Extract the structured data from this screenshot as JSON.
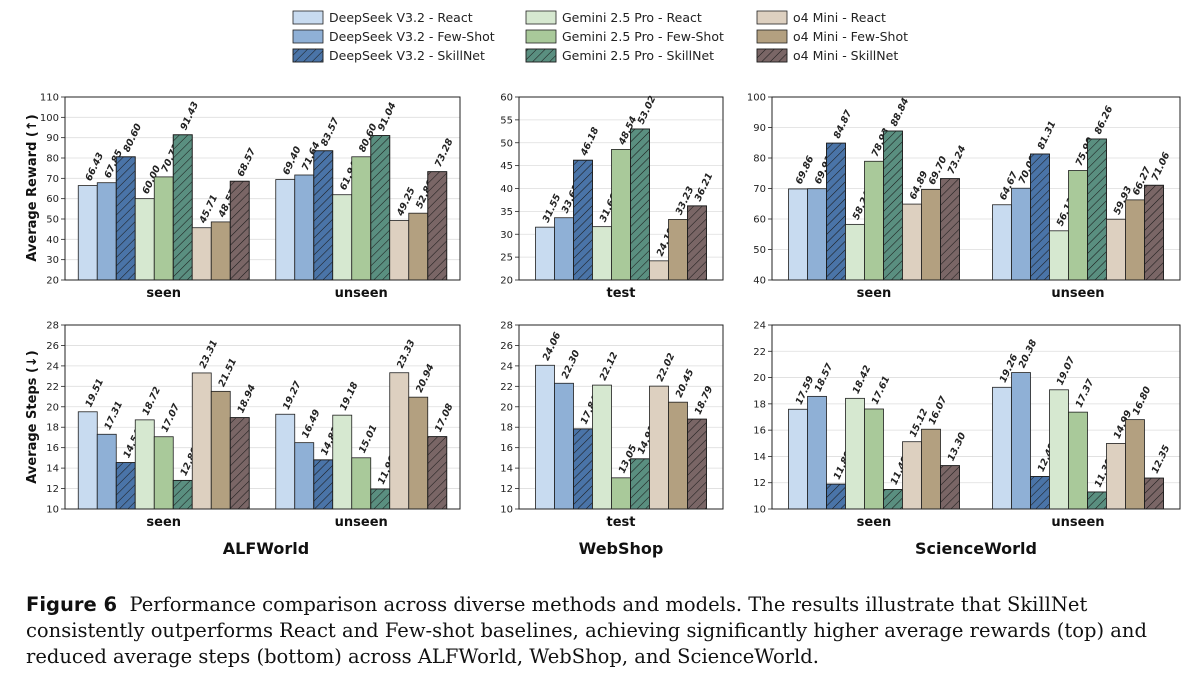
{
  "legend": [
    {
      "label": "DeepSeek V3.2 - React",
      "color": "#c8dbf0",
      "hatch": false
    },
    {
      "label": "DeepSeek V3.2 - Few-Shot",
      "color": "#8fb0d6",
      "hatch": false
    },
    {
      "label": "DeepSeek V3.2 - SkillNet",
      "color": "#4a74a8",
      "hatch": true
    },
    {
      "label": "Gemini 2.5 Pro - React",
      "color": "#d6e8d0",
      "hatch": false
    },
    {
      "label": "Gemini 2.5 Pro - Few-Shot",
      "color": "#a9c99a",
      "hatch": false
    },
    {
      "label": "Gemini 2.5 Pro - SkillNet",
      "color": "#5a8f80",
      "hatch": true
    },
    {
      "label": "o4 Mini - React",
      "color": "#ddd0c0",
      "hatch": false
    },
    {
      "label": "o4 Mini - Few-Shot",
      "color": "#b3a080",
      "hatch": false
    },
    {
      "label": "o4 Mini - SkillNet",
      "color": "#7a6666",
      "hatch": true
    }
  ],
  "row_ylabels": [
    "Average Reward (↑)",
    "Average Steps (↓)"
  ],
  "benchmarks": [
    "ALFWorld",
    "WebShop",
    "ScienceWorld"
  ],
  "chart_data": [
    {
      "type": "bar",
      "benchmark": "ALFWorld",
      "metric": "Average Reward",
      "categories": [
        "seen",
        "unseen"
      ],
      "ylim": [
        20,
        110
      ],
      "yticks": [
        20,
        30,
        40,
        50,
        60,
        70,
        80,
        90,
        100,
        110
      ],
      "ytick_labels": [
        "20",
        "30",
        "40",
        "50",
        "60",
        "70",
        "80",
        "90",
        "100",
        "110"
      ],
      "series": [
        {
          "name": "DeepSeek V3.2 - React",
          "values": [
            66.43,
            69.4
          ]
        },
        {
          "name": "DeepSeek V3.2 - Few-Shot",
          "values": [
            67.85,
            71.64
          ]
        },
        {
          "name": "DeepSeek V3.2 - SkillNet",
          "values": [
            80.6,
            83.57
          ]
        },
        {
          "name": "Gemini 2.5 Pro - React",
          "values": [
            60.0,
            61.94
          ]
        },
        {
          "name": "Gemini 2.5 Pro - Few-Shot",
          "values": [
            70.71,
            80.6
          ]
        },
        {
          "name": "Gemini 2.5 Pro - SkillNet",
          "values": [
            91.43,
            91.04
          ]
        },
        {
          "name": "o4 Mini - React",
          "values": [
            45.71,
            49.25
          ]
        },
        {
          "name": "o4 Mini - Few-Shot",
          "values": [
            48.57,
            52.86
          ]
        },
        {
          "name": "o4 Mini - SkillNet",
          "values": [
            68.57,
            73.28
          ]
        }
      ],
      "labels": [
        [
          "66.43",
          "69.40"
        ],
        [
          "67.85",
          "71.64"
        ],
        [
          "80.60",
          "83.57"
        ],
        [
          "60.00",
          "61.94"
        ],
        [
          "70.71",
          "80.60"
        ],
        [
          "91.43",
          "91.04"
        ],
        [
          "45.71",
          "49.25"
        ],
        [
          "48.57",
          "52.86"
        ],
        [
          "68.57",
          "73.28"
        ]
      ]
    },
    {
      "type": "bar",
      "benchmark": "WebShop",
      "metric": "Average Reward",
      "categories": [
        "test"
      ],
      "ylim": [
        20,
        60
      ],
      "yticks": [
        20,
        25,
        30,
        35,
        40,
        45,
        50,
        55,
        60
      ],
      "ytick_labels": [
        "20",
        "25",
        "30",
        "35",
        "40",
        "45",
        "50",
        "55",
        "60"
      ],
      "series": [
        {
          "name": "DeepSeek V3.2 - React",
          "values": [
            31.55
          ]
        },
        {
          "name": "DeepSeek V3.2 - Few-Shot",
          "values": [
            33.61
          ]
        },
        {
          "name": "DeepSeek V3.2 - SkillNet",
          "values": [
            46.18
          ]
        },
        {
          "name": "Gemini 2.5 Pro - React",
          "values": [
            31.66
          ]
        },
        {
          "name": "Gemini 2.5 Pro - Few-Shot",
          "values": [
            48.54
          ]
        },
        {
          "name": "Gemini 2.5 Pro - SkillNet",
          "values": [
            53.02
          ]
        },
        {
          "name": "o4 Mini - React",
          "values": [
            24.19
          ]
        },
        {
          "name": "o4 Mini - Few-Shot",
          "values": [
            33.23
          ]
        },
        {
          "name": "o4 Mini - SkillNet",
          "values": [
            36.21
          ]
        }
      ],
      "labels": [
        [
          "31.55"
        ],
        [
          "33.61"
        ],
        [
          "46.18"
        ],
        [
          "31.66"
        ],
        [
          "48.54"
        ],
        [
          "53.02"
        ],
        [
          "24.19"
        ],
        [
          "33.23"
        ],
        [
          "36.21"
        ]
      ]
    },
    {
      "type": "bar",
      "benchmark": "ScienceWorld",
      "metric": "Average Reward",
      "categories": [
        "seen",
        "unseen"
      ],
      "ylim": [
        40,
        100
      ],
      "yticks": [
        40,
        50,
        60,
        70,
        80,
        90,
        100
      ],
      "ytick_labels": [
        "40",
        "50",
        "60",
        "70",
        "80",
        "90",
        "100"
      ],
      "series": [
        {
          "name": "DeepSeek V3.2 - React",
          "values": [
            69.86,
            64.67
          ]
        },
        {
          "name": "DeepSeek V3.2 - Few-Shot",
          "values": [
            69.93,
            70.09
          ]
        },
        {
          "name": "DeepSeek V3.2 - SkillNet",
          "values": [
            84.87,
            81.31
          ]
        },
        {
          "name": "Gemini 2.5 Pro - React",
          "values": [
            58.24,
            56.13
          ]
        },
        {
          "name": "Gemini 2.5 Pro - Few-Shot",
          "values": [
            78.93,
            75.9
          ]
        },
        {
          "name": "Gemini 2.5 Pro - SkillNet",
          "values": [
            88.84,
            86.26
          ]
        },
        {
          "name": "o4 Mini - React",
          "values": [
            64.89,
            59.93
          ]
        },
        {
          "name": "o4 Mini - Few-Shot",
          "values": [
            69.7,
            66.27
          ]
        },
        {
          "name": "o4 Mini - SkillNet",
          "values": [
            73.24,
            71.06
          ]
        }
      ],
      "labels": [
        [
          "69.86",
          "64.67"
        ],
        [
          "69.93",
          "70.09"
        ],
        [
          "84.87",
          "81.31"
        ],
        [
          "58.24",
          "56.13"
        ],
        [
          "78.93",
          "75.90"
        ],
        [
          "88.84",
          "86.26"
        ],
        [
          "64.89",
          "59.93"
        ],
        [
          "69.70",
          "66.27"
        ],
        [
          "73.24",
          "71.06"
        ]
      ]
    },
    {
      "type": "bar",
      "benchmark": "ALFWorld",
      "metric": "Average Steps",
      "categories": [
        "seen",
        "unseen"
      ],
      "ylim": [
        10,
        28
      ],
      "yticks": [
        10,
        12,
        14,
        16,
        18,
        20,
        22,
        24,
        26,
        28
      ],
      "ytick_labels": [
        "10",
        "12",
        "14",
        "16",
        "18",
        "20",
        "22",
        "24",
        "26",
        "28"
      ],
      "series": [
        {
          "name": "DeepSeek V3.2 - React",
          "values": [
            19.51,
            19.27
          ]
        },
        {
          "name": "DeepSeek V3.2 - Few-Shot",
          "values": [
            17.31,
            16.49
          ]
        },
        {
          "name": "DeepSeek V3.2 - SkillNet",
          "values": [
            14.54,
            14.81
          ]
        },
        {
          "name": "Gemini 2.5 Pro - React",
          "values": [
            18.72,
            19.18
          ]
        },
        {
          "name": "Gemini 2.5 Pro - Few-Shot",
          "values": [
            17.07,
            15.01
          ]
        },
        {
          "name": "Gemini 2.5 Pro - SkillNet",
          "values": [
            12.8,
            11.96
          ]
        },
        {
          "name": "o4 Mini - React",
          "values": [
            23.31,
            23.33
          ]
        },
        {
          "name": "o4 Mini - Few-Shot",
          "values": [
            21.51,
            20.94
          ]
        },
        {
          "name": "o4 Mini - SkillNet",
          "values": [
            18.94,
            17.08
          ]
        }
      ],
      "labels": [
        [
          "19.51",
          "19.27"
        ],
        [
          "17.31",
          "16.49"
        ],
        [
          "14.54",
          "14.81"
        ],
        [
          "18.72",
          "19.18"
        ],
        [
          "17.07",
          "15.01"
        ],
        [
          "12.80",
          "11.96"
        ],
        [
          "23.31",
          "23.33"
        ],
        [
          "21.51",
          "20.94"
        ],
        [
          "18.94",
          "17.08"
        ]
      ]
    },
    {
      "type": "bar",
      "benchmark": "WebShop",
      "metric": "Average Steps",
      "categories": [
        "test"
      ],
      "ylim": [
        10,
        28
      ],
      "yticks": [
        10,
        12,
        14,
        16,
        18,
        20,
        22,
        24,
        26,
        28
      ],
      "ytick_labels": [
        "10",
        "12",
        "14",
        "16",
        "18",
        "20",
        "22",
        "24",
        "26",
        "28"
      ],
      "series": [
        {
          "name": "DeepSeek V3.2 - React",
          "values": [
            24.06
          ]
        },
        {
          "name": "DeepSeek V3.2 - Few-Shot",
          "values": [
            22.3
          ]
        },
        {
          "name": "DeepSeek V3.2 - SkillNet",
          "values": [
            17.84
          ]
        },
        {
          "name": "Gemini 2.5 Pro - React",
          "values": [
            22.12
          ]
        },
        {
          "name": "Gemini 2.5 Pro - Few-Shot",
          "values": [
            13.05
          ]
        },
        {
          "name": "Gemini 2.5 Pro - SkillNet",
          "values": [
            14.91
          ]
        },
        {
          "name": "o4 Mini - React",
          "values": [
            22.02
          ]
        },
        {
          "name": "o4 Mini - Few-Shot",
          "values": [
            20.45
          ]
        },
        {
          "name": "o4 Mini - SkillNet",
          "values": [
            18.79
          ]
        }
      ],
      "labels": [
        [
          "24.06"
        ],
        [
          "22.30"
        ],
        [
          "17.84"
        ],
        [
          "22.12"
        ],
        [
          "13.05"
        ],
        [
          "14.91"
        ],
        [
          "22.02"
        ],
        [
          "20.45"
        ],
        [
          "18.79"
        ]
      ]
    },
    {
      "type": "bar",
      "benchmark": "ScienceWorld",
      "metric": "Average Steps",
      "categories": [
        "seen",
        "unseen"
      ],
      "ylim": [
        10,
        24
      ],
      "yticks": [
        10,
        12,
        14,
        16,
        18,
        20,
        22,
        24
      ],
      "ytick_labels": [
        "10",
        "12",
        "14",
        "16",
        "18",
        "20",
        "22",
        "24"
      ],
      "series": [
        {
          "name": "DeepSeek V3.2 - React",
          "values": [
            17.59,
            19.26
          ]
        },
        {
          "name": "DeepSeek V3.2 - Few-Shot",
          "values": [
            18.57,
            20.38
          ]
        },
        {
          "name": "DeepSeek V3.2 - SkillNet",
          "values": [
            11.89,
            12.48
          ]
        },
        {
          "name": "Gemini 2.5 Pro - React",
          "values": [
            18.42,
            19.07
          ]
        },
        {
          "name": "Gemini 2.5 Pro - Few-Shot",
          "values": [
            17.61,
            17.37
          ]
        },
        {
          "name": "Gemini 2.5 Pro - SkillNet",
          "values": [
            11.49,
            11.3
          ]
        },
        {
          "name": "o4 Mini - React",
          "values": [
            15.12,
            14.99
          ]
        },
        {
          "name": "o4 Mini - Few-Shot",
          "values": [
            16.07,
            16.8
          ]
        },
        {
          "name": "o4 Mini - SkillNet",
          "values": [
            13.3,
            12.35
          ]
        }
      ],
      "labels": [
        [
          "17.59",
          "19.26"
        ],
        [
          "18.57",
          "20.38"
        ],
        [
          "11.89",
          "12.48"
        ],
        [
          "18.42",
          "19.07"
        ],
        [
          "17.61",
          "17.37"
        ],
        [
          "11.49",
          "11.30"
        ],
        [
          "15.12",
          "14.99"
        ],
        [
          "16.07",
          "16.80"
        ],
        [
          "13.30",
          "12.35"
        ]
      ]
    }
  ],
  "caption": {
    "label": "Figure 6",
    "text": "Performance comparison across diverse methods and models. The results illustrate that SkillNet consistently outperforms React and Few-shot baselines, achieving significantly higher average rewards (top) and reduced average steps (bottom) across ALFWorld, WebShop, and ScienceWorld."
  }
}
